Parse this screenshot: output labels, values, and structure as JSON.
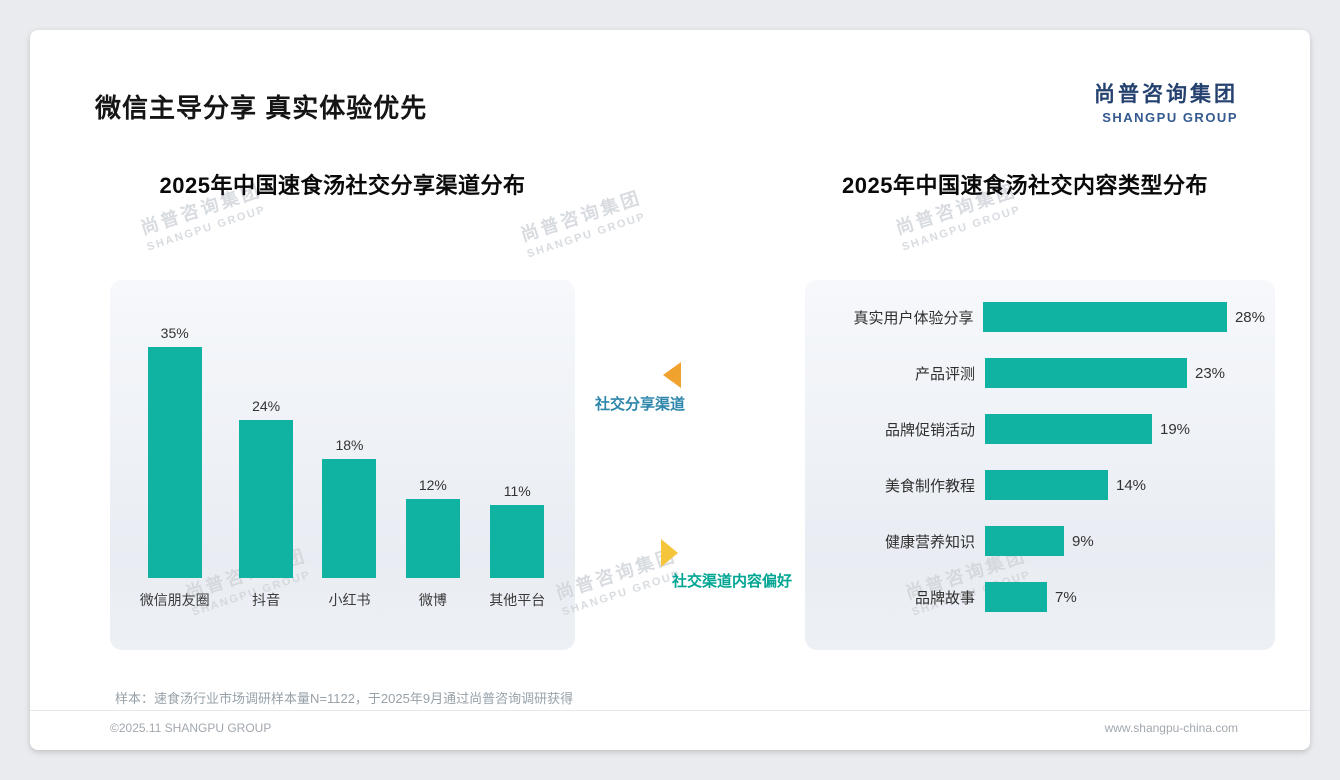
{
  "slide": {
    "title": "微信主导分享 真实体验优先",
    "logo": {
      "cn": "尚普咨询集团",
      "en": "SHANGPU GROUP"
    },
    "watermark": {
      "cn": "尚普咨询集团",
      "en": "SHANGPU GROUP"
    },
    "note": "样本：速食汤行业市场调研样本量N=1122，于2025年9月通过尚普咨询调研获得",
    "footer": {
      "left": "©2025.11 SHANGPU GROUP",
      "right": "www.shangpu-china.com"
    }
  },
  "annotations": {
    "share_channel_label": "社交分享渠道",
    "content_preference_label": "社交渠道内容偏好"
  },
  "colors": {
    "bar_teal": "#10b2a2",
    "logo_navy": "#24416f",
    "logo_blue": "#33598f",
    "annotation_blue": "#2e86ab",
    "annotation_teal": "#00a693",
    "triangle_orange": "#f0a22e",
    "triangle_yellow": "#f5c53c"
  },
  "chart_data": [
    {
      "type": "bar",
      "orientation": "vertical",
      "title": "2025年中国速食汤社交分享渠道分布",
      "categories": [
        "微信朋友圈",
        "抖音",
        "小红书",
        "微博",
        "其他平台"
      ],
      "values": [
        35,
        24,
        18,
        12,
        11
      ],
      "unit": "%",
      "ylim": [
        0,
        40
      ],
      "grid": false,
      "data_labels": true,
      "bar_color": "#10b2a2"
    },
    {
      "type": "bar",
      "orientation": "horizontal",
      "title": "2025年中国速食汤社交内容类型分布",
      "categories": [
        "真实用户体验分享",
        "产品评测",
        "品牌促销活动",
        "美食制作教程",
        "健康营养知识",
        "品牌故事"
      ],
      "values": [
        28,
        23,
        19,
        14,
        9,
        7
      ],
      "unit": "%",
      "xlim": [
        0,
        30
      ],
      "grid": false,
      "data_labels": true,
      "bar_color": "#10b2a2"
    }
  ]
}
